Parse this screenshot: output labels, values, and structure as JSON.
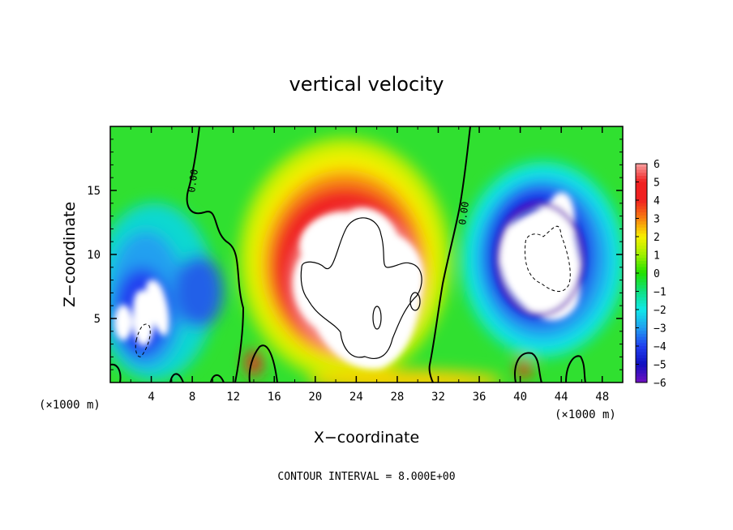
{
  "chart_data": {
    "type": "heatmap",
    "title": "vertical velocity",
    "xlabel": "X−coordinate",
    "ylabel": "Z−coordinate",
    "x_unit_left": "(×1000 m)",
    "x_unit_right": "(×1000 m)",
    "xlim": [
      0,
      50
    ],
    "ylim": [
      0,
      20
    ],
    "x_ticks": [
      4,
      8,
      12,
      16,
      20,
      24,
      28,
      32,
      36,
      40,
      44,
      48
    ],
    "x_tick_labels": [
      "4",
      "8",
      "12",
      "16",
      "20",
      "24",
      "28",
      "32",
      "36",
      "40",
      "44",
      "48"
    ],
    "y_ticks": [
      5,
      10,
      15
    ],
    "y_tick_labels": [
      "5",
      "10",
      "15"
    ],
    "colorbar": {
      "ticks": [
        6,
        5,
        4,
        3,
        2,
        1,
        0,
        -1,
        -2,
        -3,
        -4,
        -5,
        -6
      ],
      "tick_labels": [
        "6",
        "5",
        "4",
        "3",
        "2",
        "1",
        "0",
        "−1",
        "−2",
        "−3",
        "−4",
        "−5",
        "−6"
      ],
      "range": [
        -6,
        6
      ]
    },
    "contour_labels": [
      "0.00",
      "0.00"
    ],
    "note": "CONTOUR INTERVAL = 8.000E+00",
    "colors": {
      "white": "#ffffff",
      "pink": "#f8a0a0",
      "red": "#f02020",
      "orange": "#f88010",
      "yellow": "#f8f000",
      "lime": "#a0f000",
      "green": "#20e000",
      "seagreen": "#10e080",
      "cyan": "#10e8e8",
      "sky": "#20a0f0",
      "blue": "#2040f0",
      "navy": "#1010c0",
      "purple": "#7010c0"
    },
    "features": [
      {
        "name": "updraft",
        "x": 24.5,
        "z": 9.5,
        "value": 6
      },
      {
        "name": "downdraft-east",
        "x": 43,
        "z": 10.5,
        "value": -6
      },
      {
        "name": "downdraft-west",
        "x": 4,
        "z": 5,
        "value": -6
      }
    ]
  }
}
